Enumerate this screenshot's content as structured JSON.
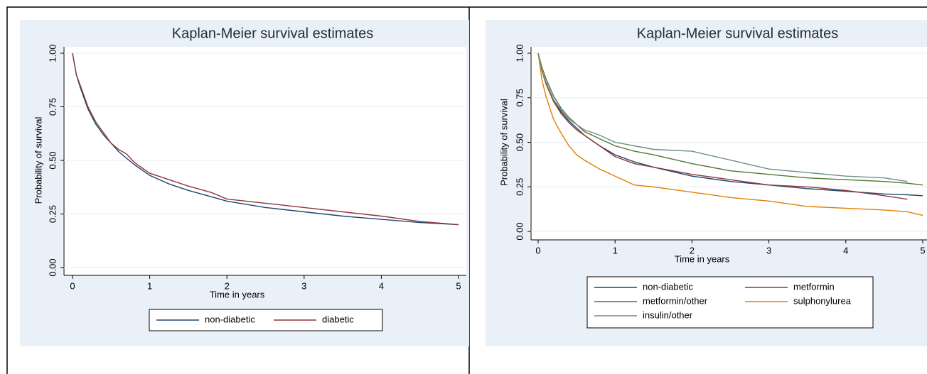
{
  "chart_data": [
    {
      "type": "line",
      "title": "Kaplan-Meier survival estimates",
      "x_label": "Time in years",
      "y_label": "Probability of survival",
      "x": [
        0,
        0.05,
        0.1,
        0.2,
        0.3,
        0.4,
        0.5,
        0.6,
        0.7,
        0.8,
        1,
        1.25,
        1.5,
        1.8,
        2,
        2.5,
        3,
        3.5,
        4,
        4.5,
        5
      ],
      "series": [
        {
          "name": "non-diabetic",
          "color": "#1a476f",
          "values": [
            1,
            0.9,
            0.84,
            0.74,
            0.67,
            0.62,
            0.58,
            0.54,
            0.51,
            0.48,
            0.43,
            0.39,
            0.36,
            0.33,
            0.31,
            0.28,
            0.26,
            0.24,
            0.225,
            0.21,
            0.2
          ]
        },
        {
          "name": "diabetic",
          "color": "#90353b",
          "values": [
            1,
            0.9,
            0.85,
            0.75,
            0.68,
            0.63,
            0.58,
            0.55,
            0.53,
            0.49,
            0.44,
            0.41,
            0.38,
            0.35,
            0.32,
            0.3,
            0.28,
            0.26,
            0.24,
            0.215,
            0.2
          ]
        }
      ],
      "xlim": [
        0,
        5
      ],
      "xticks": [
        0,
        1,
        2,
        3,
        4,
        5
      ],
      "ylim": [
        0,
        1
      ],
      "yticks": [
        {
          "value": 0,
          "label": "0.00"
        },
        {
          "value": 0.25,
          "label": "0.25"
        },
        {
          "value": 0.5,
          "label": "0.50"
        },
        {
          "value": 0.75,
          "label": "0.75"
        },
        {
          "value": 1,
          "label": "1.00"
        }
      ],
      "grid": true
    },
    {
      "type": "line",
      "title": "Kaplan-Meier survival estimates",
      "x_label": "Time in years",
      "y_label": "Probability of survival",
      "x": [
        0,
        0.05,
        0.1,
        0.2,
        0.3,
        0.4,
        0.5,
        0.6,
        0.8,
        1,
        1.25,
        1.5,
        2,
        2.5,
        3,
        3.5,
        4,
        4.5,
        4.8,
        5
      ],
      "series": [
        {
          "name": "non-diabetic",
          "color": "#1a476f",
          "values": [
            1,
            0.9,
            0.84,
            0.74,
            0.67,
            0.62,
            0.58,
            0.54,
            0.48,
            0.43,
            0.39,
            0.36,
            0.31,
            0.28,
            0.26,
            0.24,
            0.225,
            0.21,
            0.205,
            0.2
          ]
        },
        {
          "name": "metformin",
          "color": "#90353b",
          "values": [
            1,
            0.9,
            0.83,
            0.73,
            0.66,
            0.61,
            0.57,
            0.54,
            0.48,
            0.42,
            0.38,
            0.36,
            0.32,
            0.29,
            0.26,
            0.25,
            0.23,
            0.2,
            0.18,
            null
          ]
        },
        {
          "name": "metformin/other",
          "color": "#55752f",
          "values": [
            1,
            0.92,
            0.86,
            0.76,
            0.69,
            0.64,
            0.6,
            0.56,
            0.52,
            0.48,
            0.45,
            0.43,
            0.38,
            0.34,
            0.32,
            0.3,
            0.29,
            0.28,
            0.27,
            0.26
          ]
        },
        {
          "name": "sulphonylurea",
          "color": "#e37e00",
          "values": [
            1,
            0.85,
            0.76,
            0.63,
            0.55,
            0.48,
            0.43,
            0.4,
            0.35,
            0.31,
            0.26,
            0.25,
            0.22,
            0.19,
            0.17,
            0.14,
            0.13,
            0.12,
            0.11,
            0.09
          ]
        },
        {
          "name": "insulin/other",
          "color": "#6e8e84",
          "values": [
            1,
            0.9,
            0.84,
            0.74,
            0.68,
            0.63,
            0.6,
            0.57,
            0.54,
            0.5,
            0.48,
            0.46,
            0.45,
            0.4,
            0.35,
            0.33,
            0.31,
            0.3,
            0.28,
            null
          ]
        }
      ],
      "xlim": [
        0,
        5
      ],
      "xticks": [
        0,
        1,
        2,
        3,
        4,
        5
      ],
      "ylim": [
        0,
        1
      ],
      "yticks": [
        {
          "value": 0,
          "label": "0.00"
        },
        {
          "value": 0.25,
          "label": "0.25"
        },
        {
          "value": 0.5,
          "label": "0.50"
        },
        {
          "value": 0.75,
          "label": "0.75"
        },
        {
          "value": 1,
          "label": "1.00"
        }
      ],
      "grid": true
    }
  ]
}
